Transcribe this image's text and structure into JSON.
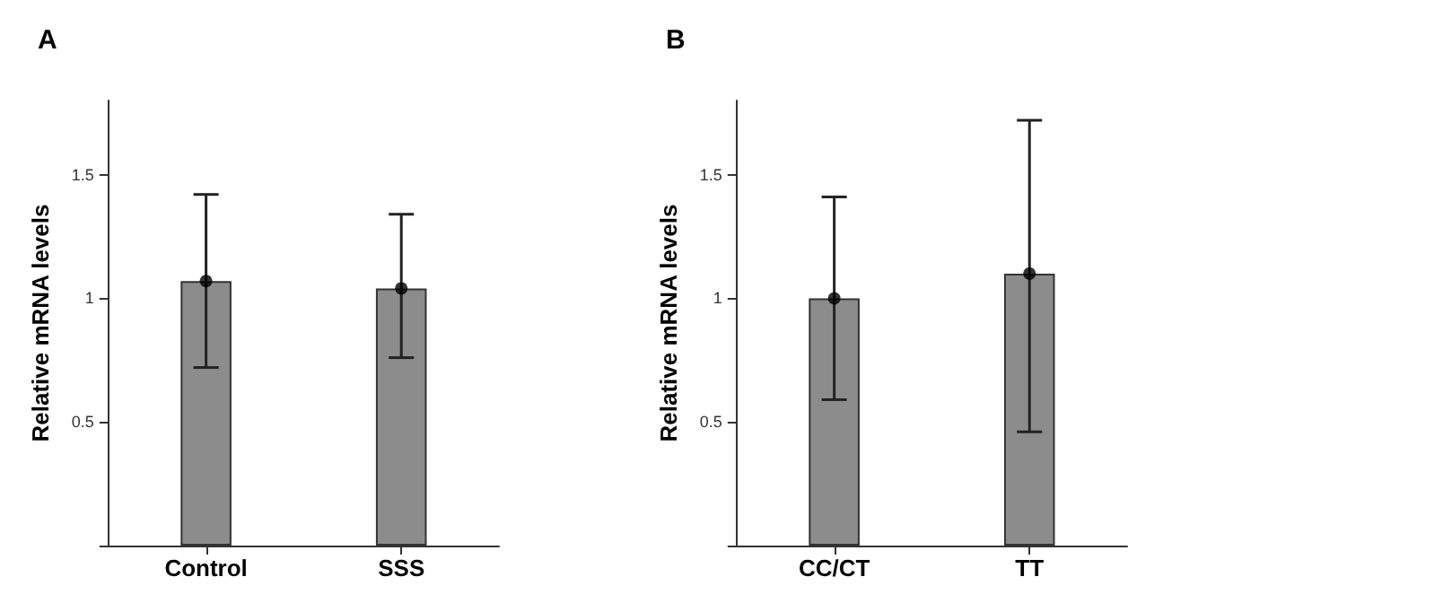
{
  "chart_data": [
    {
      "type": "bar",
      "title": "A",
      "ylabel": "Relative mRNA levels",
      "categories": [
        "Control",
        "SSS"
      ],
      "series": [
        {
          "color": "#8c8c8c",
          "values": [
            1.07,
            1.04
          ],
          "errors": [
            [
              0.72,
              1.42
            ],
            [
              0.76,
              1.34
            ]
          ]
        },
        {
          "type": "scatter",
          "color": "#000000",
          "x": [
            "Control",
            "SSS"
          ],
          "values": [
            1.07,
            1.04
          ]
        }
      ],
      "marker": "circle",
      "ylim": [
        0,
        1.8
      ],
      "yticks": [
        {
          "value": 0,
          "label": null
        },
        0.5,
        1.0,
        1.5
      ],
      "grid": false
    },
    {
      "type": "bar",
      "title": "B",
      "ylabel": "Relative mRNA levels",
      "categories": [
        "CC/CT",
        "TT"
      ],
      "series": [
        {
          "color": "#8c8c8c",
          "values": [
            1.0,
            1.1
          ],
          "errors": [
            [
              0.59,
              1.41
            ],
            [
              0.46,
              1.72
            ]
          ]
        },
        {
          "type": "scatter",
          "color": "#000000",
          "x": [
            "CC/CT",
            "TT"
          ],
          "values": [
            1.0,
            1.1
          ]
        }
      ],
      "marker": "circle",
      "ylim": [
        0,
        1.8
      ],
      "yticks": [
        {
          "value": 0,
          "label": null
        },
        0.5,
        1.0,
        1.5
      ],
      "grid": false
    }
  ]
}
